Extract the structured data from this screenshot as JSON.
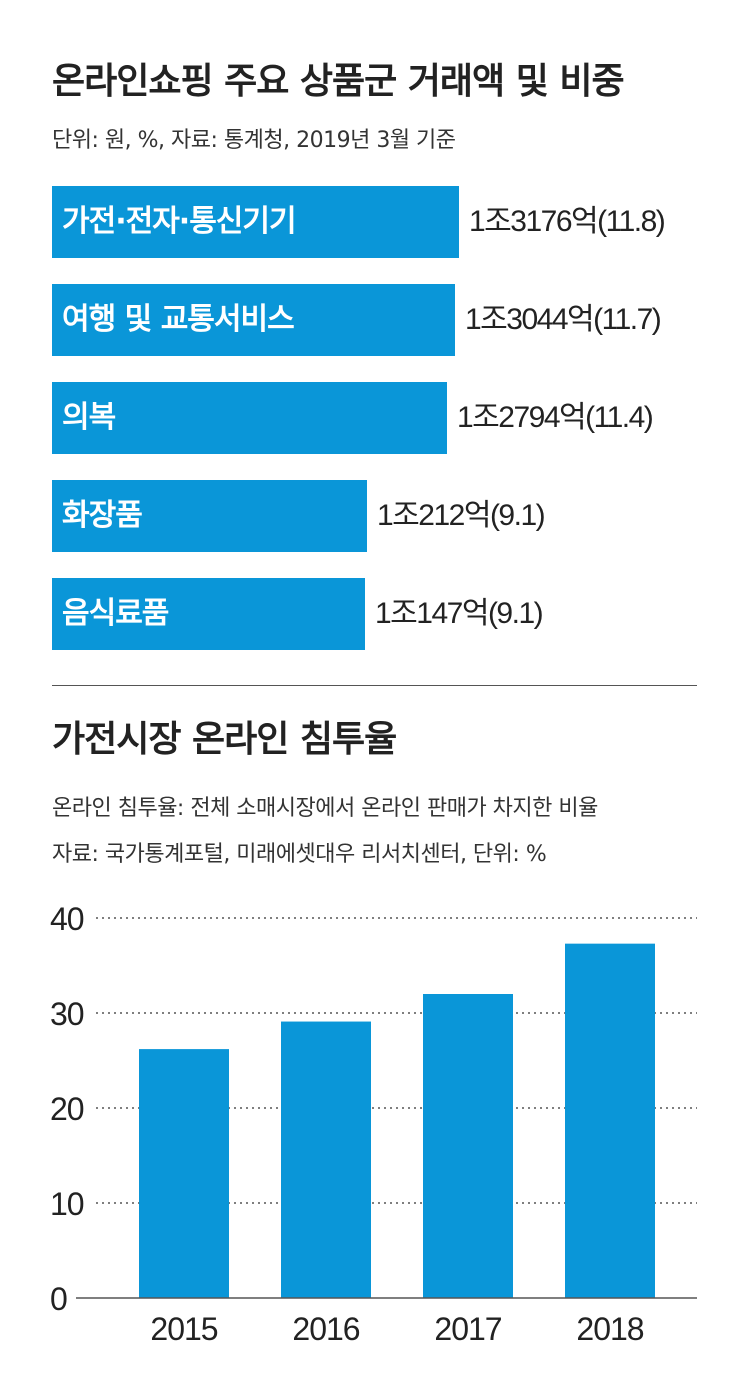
{
  "chart_data": [
    {
      "type": "bar",
      "orientation": "horizontal",
      "title": "온라인쇼핑 주요 상품군 거래액 및 비중",
      "subtitle": "단위: 원, %, 자료: 통계청, 2019년 3월 기준",
      "categories": [
        "가전·전자·통신기기",
        "여행 및 교통서비스",
        "의복",
        "화장품",
        "음식료품"
      ],
      "values": [
        13176,
        13044,
        12794,
        10212,
        10147
      ],
      "value_unit": "억원",
      "shares": [
        11.8,
        11.7,
        11.4,
        9.1,
        9.1
      ],
      "value_labels": [
        "1조3176억(11.8)",
        "1조3044억(11.7)",
        "1조2794억(11.4)",
        "1조212억(9.1)",
        "1조147억(9.1)"
      ]
    },
    {
      "type": "bar",
      "title": "가전시장 온라인 침투율",
      "subtitle_lines": [
        "온라인 침투율: 전체 소매시장에서 온라인 판매가 차지한 비율",
        "자료: 국가통계포털, 미래에셋대우 리서치센터, 단위: %"
      ],
      "categories": [
        "2015",
        "2016",
        "2017",
        "2018"
      ],
      "values": [
        26.2,
        29.1,
        32.0,
        37.3
      ],
      "xlabel": "",
      "ylabel": "",
      "ylim": [
        0,
        40
      ],
      "yticks": [
        "0",
        "10",
        "20",
        "30",
        "40"
      ],
      "grid": true
    }
  ],
  "colors": {
    "bar": "#0a96d8",
    "text": "#222222",
    "grid": "#555555"
  }
}
